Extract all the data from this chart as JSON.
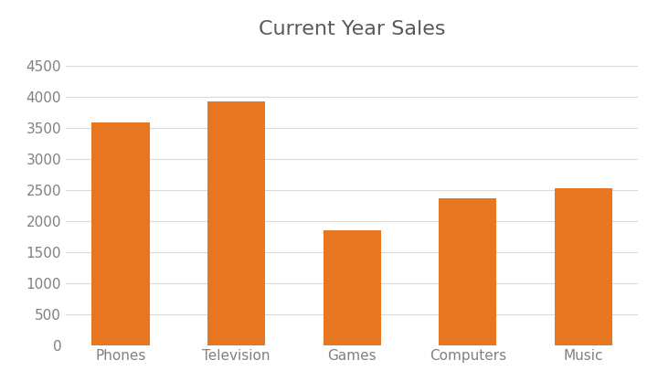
{
  "title": "Current Year Sales",
  "categories": [
    "Phones",
    "Television",
    "Games",
    "Computers",
    "Music"
  ],
  "values": [
    3580,
    3920,
    1850,
    2370,
    2520
  ],
  "bar_color": "#E87722",
  "background_color": "#ffffff",
  "ylim": [
    0,
    4800
  ],
  "yticks": [
    0,
    500,
    1000,
    1500,
    2000,
    2500,
    3000,
    3500,
    4000,
    4500
  ],
  "title_fontsize": 16,
  "title_color": "#595959",
  "tick_label_color": "#808080",
  "tick_label_fontsize": 11,
  "grid_color": "#d9d9d9",
  "bar_width": 0.5
}
